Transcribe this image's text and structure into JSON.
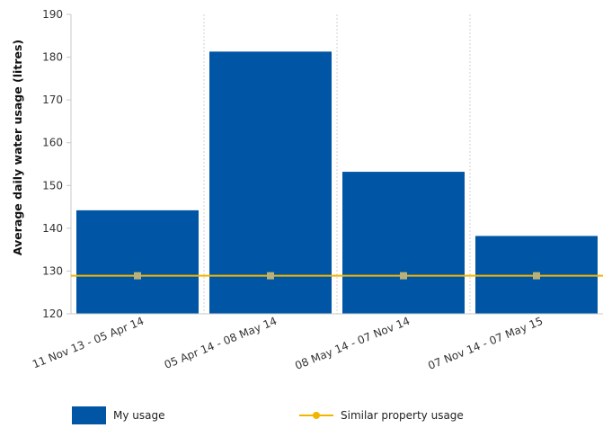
{
  "chart_data": {
    "type": "bar",
    "ylabel": "Average daily water usage (litres)",
    "xlabel": "",
    "ylim": [
      120,
      190
    ],
    "yticks": [
      120,
      130,
      140,
      150,
      160,
      170,
      180,
      190
    ],
    "categories": [
      "11 Nov 13 - 05 Apr 14",
      "05 Apr 14 - 08 May 14",
      "08 May 14 - 07 Nov 14",
      "07 Nov 14 - 07 May 15"
    ],
    "series": [
      {
        "name": "My usage",
        "type": "bar",
        "values": [
          144.2,
          181.3,
          153.2,
          138.2
        ],
        "color": "#0055a5"
      },
      {
        "name": "Similar property usage",
        "type": "line",
        "values": [
          128.9,
          128.9,
          128.9,
          128.9
        ],
        "color": "#f2b600",
        "marker_color": "#b8b27a"
      }
    ],
    "grid": {
      "horizontal": false,
      "vertical": true
    },
    "legend_position": "bottom"
  }
}
